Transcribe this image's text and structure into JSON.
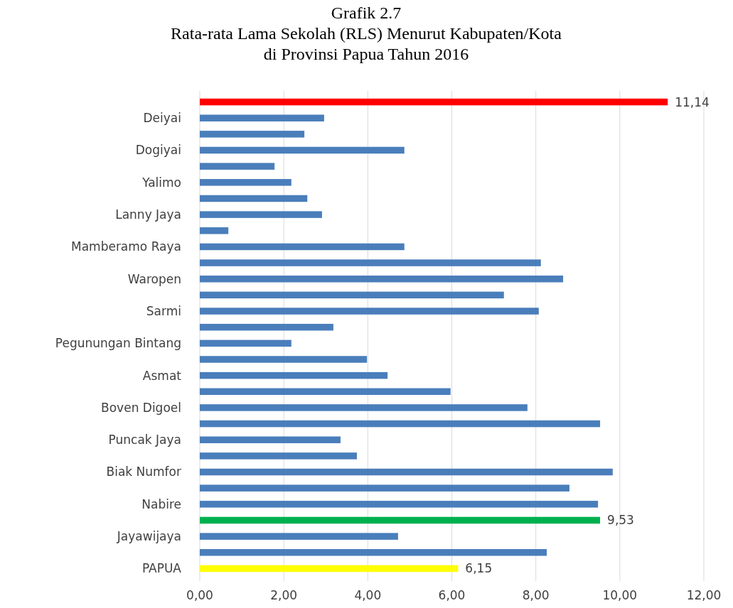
{
  "chart_data": {
    "type": "bar",
    "orientation": "horizontal",
    "title": "Grafik 2.7\nRata-rata Lama Sekolah (RLS) Menurut Kabupaten/Kota\ndi Provinsi Papua Tahun 2016",
    "categories": [
      null,
      "Deiyai",
      null,
      "Dogiyai",
      null,
      "Yalimo",
      null,
      "Lanny Jaya",
      null,
      "Mamberamo Raya",
      null,
      "Waropen",
      null,
      "Sarmi",
      null,
      "Pegunungan Bintang",
      null,
      "Asmat",
      null,
      "Boven Digoel",
      null,
      "Puncak Jaya",
      null,
      "Biak Numfor",
      null,
      "Nabire",
      null,
      "Jayawijaya",
      null,
      "PAPUA"
    ],
    "values": [
      11.14,
      2.96,
      2.49,
      4.87,
      1.78,
      2.18,
      2.56,
      2.91,
      0.68,
      4.87,
      8.12,
      8.65,
      7.24,
      8.07,
      3.18,
      2.18,
      3.98,
      4.47,
      5.97,
      7.8,
      9.53,
      3.35,
      3.74,
      9.83,
      8.8,
      9.48,
      9.53,
      4.72,
      8.26,
      6.15
    ],
    "colors": [
      "#ff0000",
      "#4a7ebb",
      "#4a7ebb",
      "#4a7ebb",
      "#4a7ebb",
      "#4a7ebb",
      "#4a7ebb",
      "#4a7ebb",
      "#4a7ebb",
      "#4a7ebb",
      "#4a7ebb",
      "#4a7ebb",
      "#4a7ebb",
      "#4a7ebb",
      "#4a7ebb",
      "#4a7ebb",
      "#4a7ebb",
      "#4a7ebb",
      "#4a7ebb",
      "#4a7ebb",
      "#4a7ebb",
      "#4a7ebb",
      "#4a7ebb",
      "#4a7ebb",
      "#4a7ebb",
      "#4a7ebb",
      "#00b050",
      "#4a7ebb",
      "#4a7ebb",
      "#ffff00"
    ],
    "value_labels": [
      "11,14",
      null,
      null,
      null,
      null,
      null,
      null,
      null,
      null,
      null,
      null,
      null,
      null,
      null,
      null,
      null,
      null,
      null,
      null,
      null,
      null,
      null,
      null,
      null,
      null,
      null,
      "9,53",
      null,
      null,
      "6,15"
    ],
    "xlim": [
      0,
      12
    ],
    "xticks": [
      {
        "value": 0,
        "label": "0,00"
      },
      {
        "value": 2,
        "label": "2,00"
      },
      {
        "value": 4,
        "label": "4,00"
      },
      {
        "value": 6,
        "label": "6,00"
      },
      {
        "value": 8,
        "label": "8,00"
      },
      {
        "value": 10,
        "label": "10,00"
      },
      {
        "value": 12,
        "label": "12,00"
      }
    ],
    "grid": "x"
  }
}
